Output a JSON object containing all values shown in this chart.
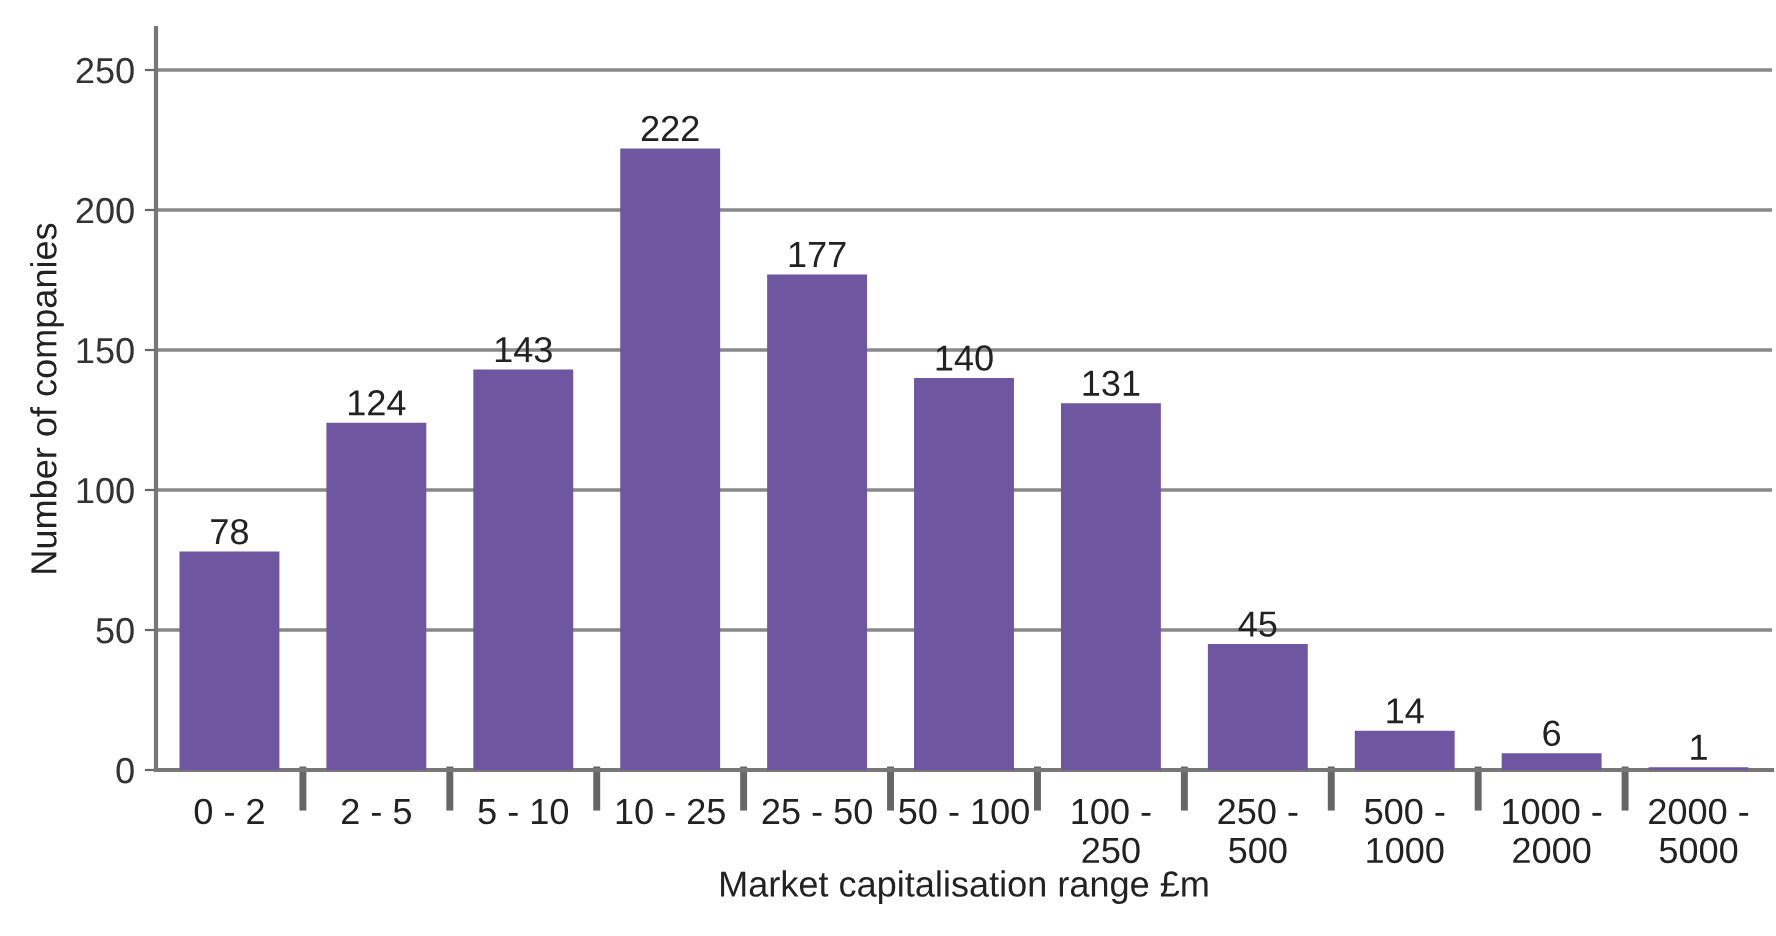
{
  "chart_data": {
    "type": "bar",
    "xlabel": "Market capitalisation range £m",
    "ylabel": "Number of companies",
    "categories": [
      "0 - 2",
      "2 - 5",
      "5 - 10",
      "10 - 25",
      "25 - 50",
      "50 - 100",
      "100 - 250",
      "250 - 500",
      "500 - 1000",
      "1000 - 2000",
      "2000 - 5000"
    ],
    "values": [
      78,
      124,
      143,
      222,
      177,
      140,
      131,
      45,
      14,
      6,
      1
    ],
    "color": "#6e57a0",
    "data_labels": true,
    "ylim": [
      0,
      265
    ],
    "yticks": [
      0,
      50,
      100,
      150,
      200,
      250
    ],
    "grid": "y",
    "legend": false
  }
}
